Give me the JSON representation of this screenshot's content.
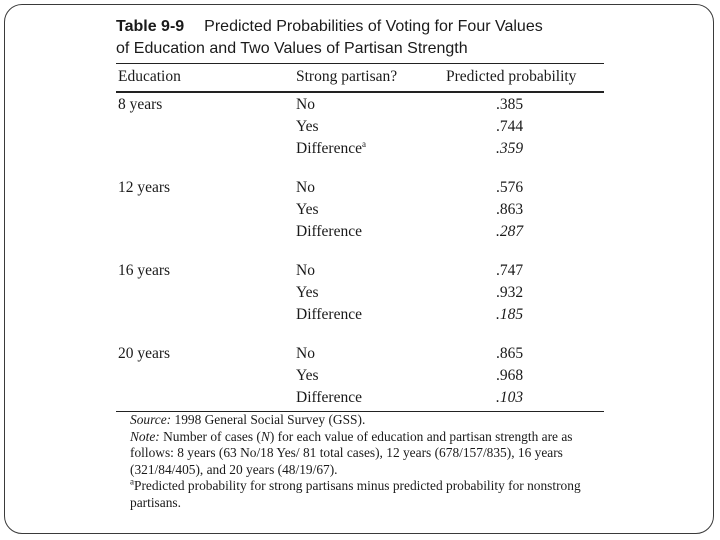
{
  "table": {
    "number": "Table 9-9",
    "title_line1": "Predicted Probabilities of Voting for Four Values",
    "title_line2": "of Education and Two Values of Partisan Strength",
    "headers": [
      "Education",
      "Strong partisan?",
      "Predicted probability"
    ],
    "groups": [
      {
        "education": "8 years",
        "rows": [
          {
            "partisan": "No",
            "prob": ".385"
          },
          {
            "partisan": "Yes",
            "prob": ".744"
          },
          {
            "partisan": "Difference",
            "sup": "a",
            "prob": ".359"
          }
        ]
      },
      {
        "education": "12 years",
        "rows": [
          {
            "partisan": "No",
            "prob": ".576"
          },
          {
            "partisan": "Yes",
            "prob": ".863"
          },
          {
            "partisan": "Difference",
            "prob": ".287"
          }
        ]
      },
      {
        "education": "16 years",
        "rows": [
          {
            "partisan": "No",
            "prob": ".747"
          },
          {
            "partisan": "Yes",
            "prob": ".932"
          },
          {
            "partisan": "Difference",
            "prob": ".185"
          }
        ]
      },
      {
        "education": "20 years",
        "rows": [
          {
            "partisan": "No",
            "prob": ".865"
          },
          {
            "partisan": "Yes",
            "prob": ".968"
          },
          {
            "partisan": "Difference",
            "prob": ".103"
          }
        ]
      }
    ]
  },
  "notes": {
    "source_label": "Source:",
    "source_text": " 1998 General Social Survey (GSS).",
    "note_label": "Note:",
    "note_pre": " Number of cases (",
    "note_n": "N",
    "note_post": ") for each value of education and partisan strength are as follows: 8 years (63 No/18 Yes/ 81 total cases), 12 years (678/157/835), 16 years (321/84/405), and 20 years (48/19/67).",
    "footnote_mark": "a",
    "footnote_text": "Predicted probability for strong partisans minus predicted probability for nonstrong partisans."
  }
}
